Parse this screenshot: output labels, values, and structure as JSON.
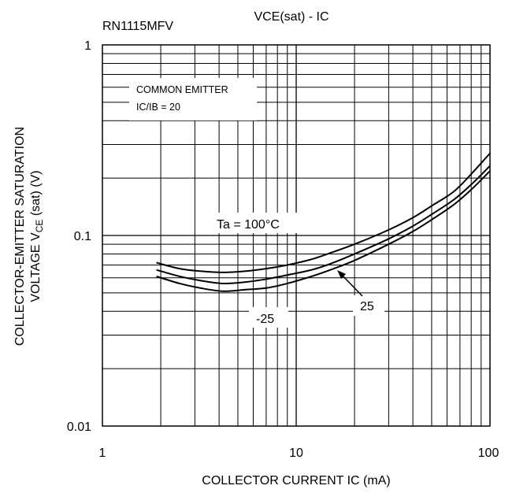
{
  "part_number": "RN1115MFV",
  "chart_title": "VCE(sat)  -  IC",
  "conditions": {
    "line1": "COMMON EMITTER",
    "line2": "IC/IB = 20"
  },
  "ylabel": {
    "line1": "COLLECTOR-EMITTER SATURATION",
    "line2_prefix": "VOLTAGE V",
    "line2_sub": "CE",
    "line2_suffix": " (sat) (V)"
  },
  "xlabel": "COLLECTOR CURRENT IC (mA)",
  "colors": {
    "line": "#000000",
    "grid": "#000000",
    "background": "#ffffff"
  },
  "chart_data": {
    "type": "line",
    "title": "VCE(sat)  -  IC",
    "xlabel": "COLLECTOR CURRENT IC (mA)",
    "ylabel": "COLLECTOR-EMITTER SATURATION VOLTAGE VCE (sat) (V)",
    "xscale": "log",
    "yscale": "log",
    "xlim": [
      1,
      100
    ],
    "ylim": [
      0.01,
      1
    ],
    "grid": true,
    "x_ticks": [
      {
        "value": 1,
        "label": "1"
      },
      {
        "value": 10,
        "label": "10"
      },
      {
        "value": 100,
        "label": "100"
      }
    ],
    "y_ticks": [
      {
        "value": 1,
        "label": "1"
      },
      {
        "value": 0.1,
        "label": "0.1"
      },
      {
        "value": 0.01,
        "label": "0.01"
      }
    ],
    "series": [
      {
        "name": "Ta = 100°C",
        "x": [
          1.9,
          2.5,
          3.2,
          4.2,
          5.5,
          7,
          9,
          12,
          15,
          20,
          30,
          40,
          50,
          65,
          80,
          100
        ],
        "y": [
          0.072,
          0.067,
          0.065,
          0.064,
          0.065,
          0.067,
          0.07,
          0.075,
          0.081,
          0.09,
          0.107,
          0.124,
          0.143,
          0.17,
          0.21,
          0.27
        ]
      },
      {
        "name": "25",
        "x": [
          1.9,
          2.5,
          3.2,
          4.2,
          5.5,
          7,
          9,
          12,
          15,
          20,
          30,
          40,
          50,
          65,
          80,
          100
        ],
        "y": [
          0.066,
          0.061,
          0.058,
          0.056,
          0.057,
          0.059,
          0.062,
          0.066,
          0.071,
          0.08,
          0.096,
          0.112,
          0.129,
          0.154,
          0.185,
          0.232
        ]
      },
      {
        "name": "-25",
        "x": [
          1.9,
          2.5,
          3.2,
          4.2,
          5.5,
          7,
          9,
          12,
          15,
          20,
          30,
          40,
          50,
          65,
          80,
          100
        ],
        "y": [
          0.061,
          0.056,
          0.053,
          0.051,
          0.052,
          0.053,
          0.056,
          0.061,
          0.066,
          0.074,
          0.09,
          0.105,
          0.121,
          0.145,
          0.174,
          0.218
        ]
      }
    ],
    "annotations": [
      {
        "text": "Ta = 100°C",
        "series": "Ta = 100°C"
      },
      {
        "text": "25",
        "series": "25",
        "arrow": true
      },
      {
        "text": "-25",
        "series": "-25"
      }
    ]
  }
}
